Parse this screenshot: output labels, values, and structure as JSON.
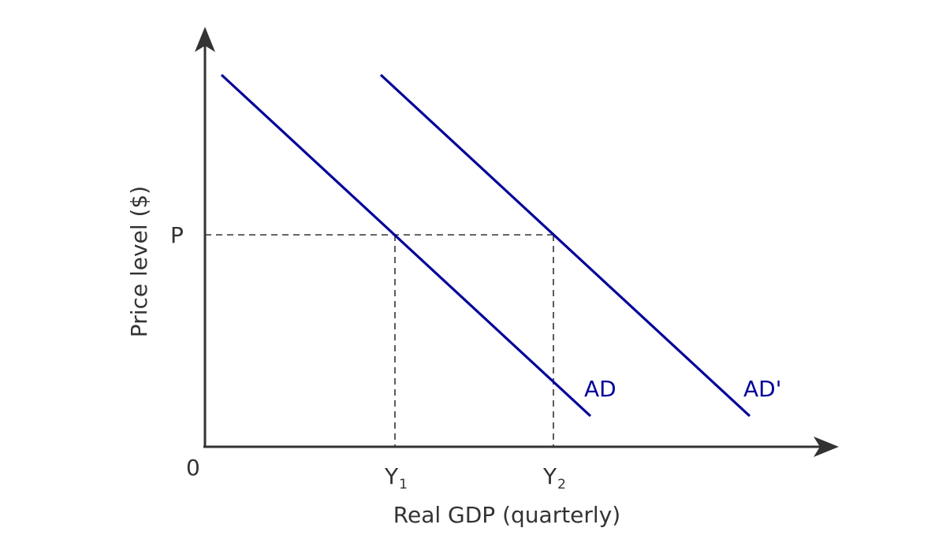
{
  "axes": {
    "y_label": "Price level ($)",
    "x_label": "Real GDP (quarterly)",
    "origin_label": "0"
  },
  "ticks": {
    "p_label": "P",
    "y1_main": "Y",
    "y1_sub": "1",
    "y2_main": "Y",
    "y2_sub": "2"
  },
  "curves": {
    "ad_label": "AD",
    "ad_shifted_label": "AD'"
  },
  "colors": {
    "curve": "#000099",
    "axis": "#333333",
    "background": "#ffffff"
  }
}
